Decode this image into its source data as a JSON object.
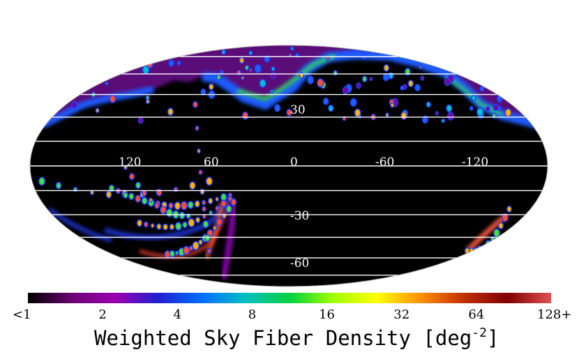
{
  "chart_data": {
    "type": "heatmap",
    "projection": "Mollweide all-sky",
    "title": "Weighted Sky Fiber Density [deg",
    "title_unit_superscript": "-2",
    "title_close": "]",
    "longitude_labels": [
      "120",
      "60",
      "0",
      "-60",
      "-120"
    ],
    "latitude_labels": [
      "30",
      "-30",
      "-60"
    ],
    "colorbar": {
      "ticks": [
        "<1",
        "2",
        "4",
        "8",
        "16",
        "32",
        "64",
        "128+"
      ],
      "values": [
        1,
        2,
        4,
        8,
        16,
        32,
        64,
        128
      ],
      "scale": "log2",
      "colors": [
        "#000000",
        "#6a0070",
        "#9a00b0",
        "#2020d0",
        "#0070ff",
        "#00c0c0",
        "#00d040",
        "#a0ff00",
        "#ffff00",
        "#ff9000",
        "#c03000",
        "#800000",
        "#e05050"
      ]
    },
    "features": {
      "northern_cap_density": 2,
      "galactic_band_density": 16,
      "south_arcs_density": 32
    }
  }
}
